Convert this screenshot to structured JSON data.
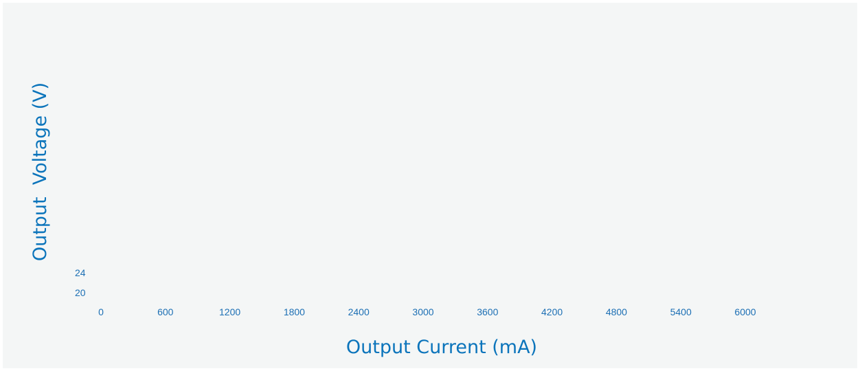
{
  "chart_data": {
    "type": "line",
    "title": "",
    "xlabel": "Output Current (mA)",
    "ylabel": "Output  Voltage (V)",
    "x_ticks": [
      "0",
      "600",
      "1200",
      "1800",
      "2400",
      "3000",
      "3600",
      "4200",
      "4800",
      "5400",
      "6000"
    ],
    "y_ticks": [
      "20",
      "24"
    ],
    "xlim": [
      0,
      6000
    ],
    "ylim": [
      20,
      24
    ],
    "grid": false,
    "series": [],
    "colors": {
      "text": "#1c6fb4",
      "title": "#0b74bb",
      "background": "#f4f6f6"
    }
  }
}
